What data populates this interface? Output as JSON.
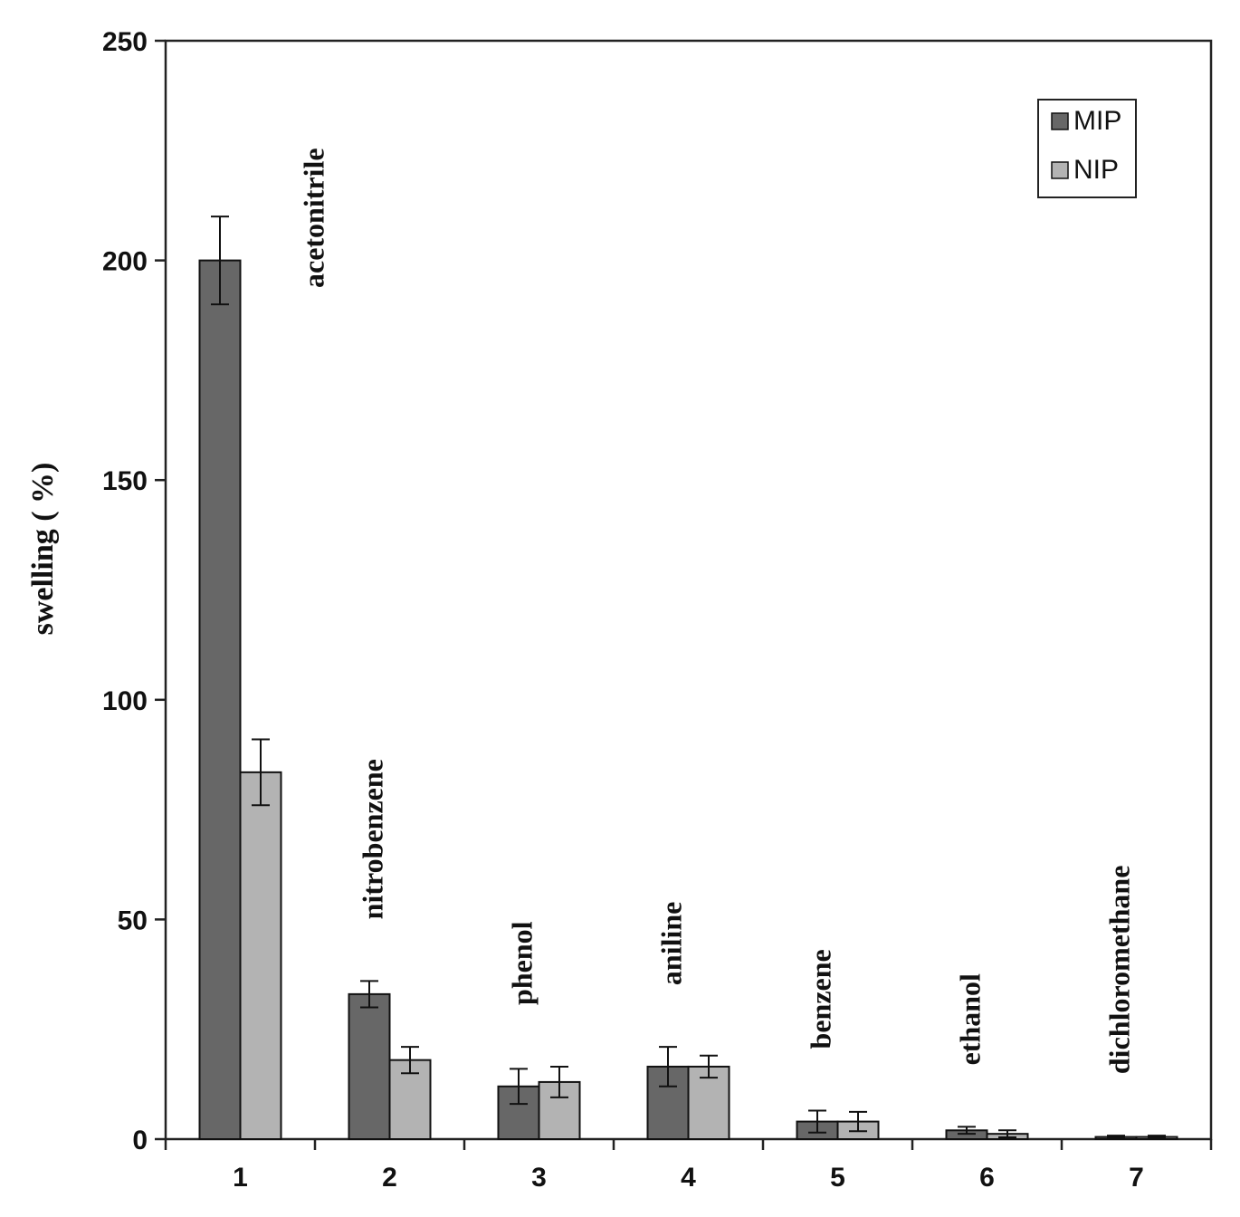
{
  "chart_data": {
    "type": "bar",
    "title": "",
    "xlabel": "",
    "ylabel": "swelling ( %)",
    "ylim": [
      0,
      250
    ],
    "yticks": [
      0,
      50,
      100,
      150,
      200,
      250
    ],
    "categories": [
      "1",
      "2",
      "3",
      "4",
      "5",
      "6",
      "7"
    ],
    "solvent_labels": [
      "acetonitrile",
      "nitrobenzene",
      "phenol",
      "aniline",
      "benzene",
      "ethanol",
      "dichloromethane"
    ],
    "series": [
      {
        "name": "MIP",
        "color": "#676767",
        "values": [
          200,
          33,
          12,
          16.5,
          4,
          2,
          0.5
        ],
        "errors": [
          10,
          3,
          4,
          4.5,
          2.5,
          0.8,
          0.3
        ]
      },
      {
        "name": "NIP",
        "color": "#b3b3b3",
        "values": [
          83.5,
          18,
          13,
          16.5,
          4,
          1.2,
          0.5
        ],
        "errors": [
          7.5,
          3,
          3.5,
          2.5,
          2.2,
          0.8,
          0.3
        ]
      }
    ],
    "legend": "top-right",
    "grid": false
  }
}
